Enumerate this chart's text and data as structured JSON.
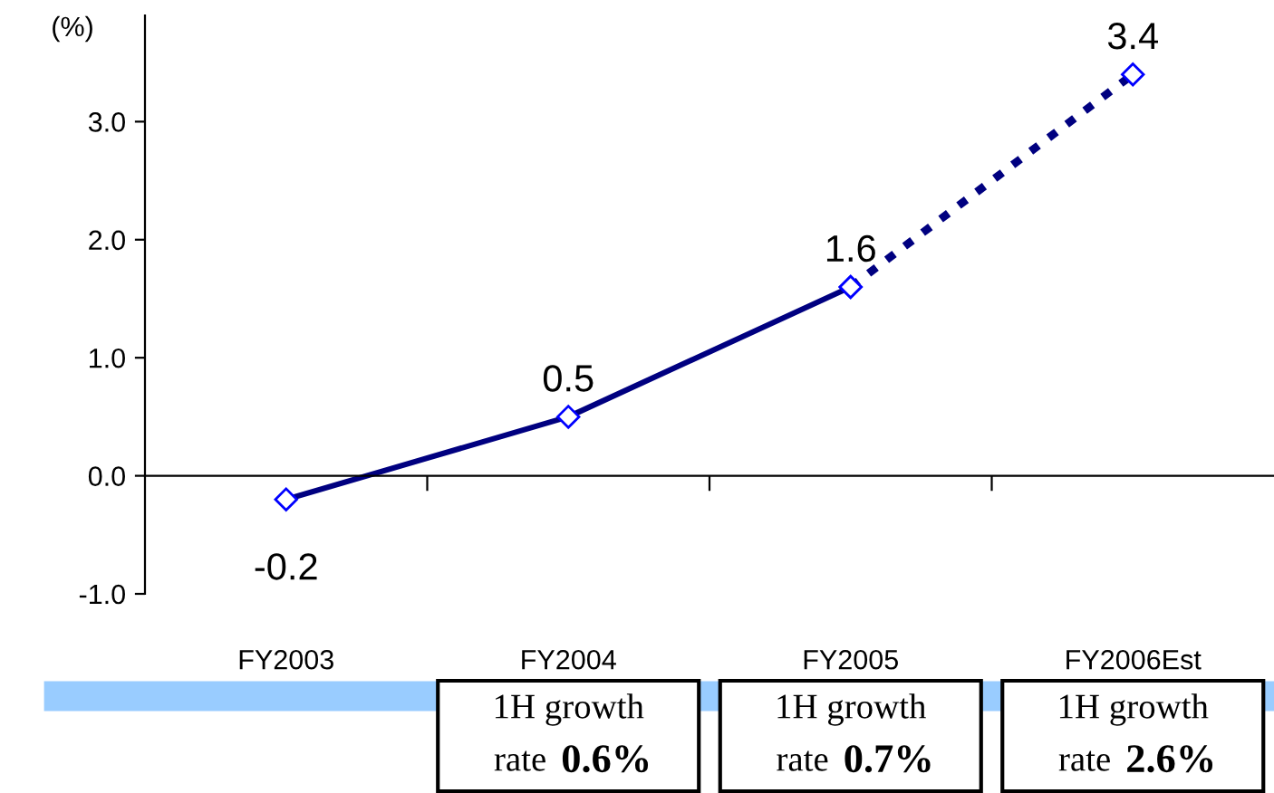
{
  "chart_data": {
    "type": "line",
    "ylabel": "(%)",
    "categories": [
      "FY2003",
      "FY2004",
      "FY2005",
      "FY2006Est"
    ],
    "series": [
      {
        "color": "#000080",
        "values": [
          -0.2,
          0.5,
          1.6,
          null
        ],
        "line_style": "solid",
        "value_labels": [
          "-0.2",
          "0.5",
          "1.6",
          null
        ]
      },
      {
        "color": "#000080",
        "values": [
          null,
          null,
          1.6,
          3.4
        ],
        "line_style": "dotted",
        "value_labels": [
          null,
          null,
          null,
          "3.4"
        ]
      }
    ],
    "marker": "diamond",
    "ylim": [
      -1,
      3.9
    ],
    "yticks": [
      {
        "value": -1,
        "label": "-1.0"
      },
      {
        "value": 0,
        "label": "0.0"
      },
      {
        "value": 1,
        "label": "1.0"
      },
      {
        "value": 2,
        "label": "2.0"
      },
      {
        "value": 3,
        "label": "3.0"
      }
    ],
    "legend": false,
    "annotations": [
      "1H growth rate 0.6%",
      "1H growth rate 0.7%",
      "1H growth rate 2.6%"
    ]
  }
}
